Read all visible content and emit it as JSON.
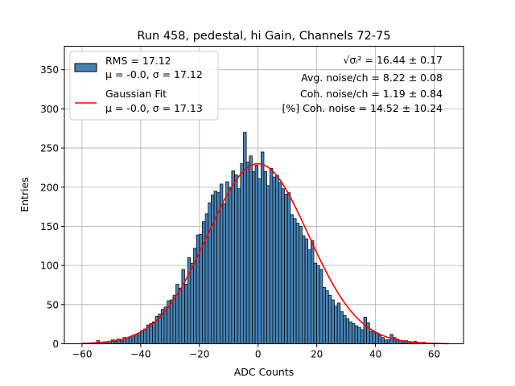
{
  "chart_data": {
    "type": "bar",
    "title": "Run 458, pedestal, hi Gain, Channels 72-75",
    "xlabel": "ADC Counts",
    "ylabel": "Entries",
    "xlim": [
      -66,
      70
    ],
    "ylim": [
      0,
      380
    ],
    "grid": true,
    "x_ticks": [
      -60,
      -40,
      -20,
      0,
      20,
      40,
      60
    ],
    "y_ticks": [
      0,
      50,
      100,
      150,
      200,
      250,
      300,
      350
    ],
    "bin_width": 1,
    "bins_start": [
      -60,
      -59,
      -58,
      -57,
      -56,
      -55,
      -54,
      -53,
      -52,
      -51,
      -50,
      -49,
      -48,
      -47,
      -46,
      -45,
      -44,
      -43,
      -42,
      -41,
      -40,
      -39,
      -38,
      -37,
      -36,
      -35,
      -34,
      -33,
      -32,
      -31,
      -30,
      -29,
      -28,
      -27,
      -26,
      -25,
      -24,
      -23,
      -22,
      -21,
      -20,
      -19,
      -18,
      -17,
      -16,
      -15,
      -14,
      -13,
      -12,
      -11,
      -10,
      -9,
      -8,
      -7,
      -6,
      -5,
      -4,
      -3,
      -2,
      -1,
      0,
      1,
      2,
      3,
      4,
      5,
      6,
      7,
      8,
      9,
      10,
      11,
      12,
      13,
      14,
      15,
      16,
      17,
      18,
      19,
      20,
      21,
      22,
      23,
      24,
      25,
      26,
      27,
      28,
      29,
      30,
      31,
      32,
      33,
      34,
      35,
      36,
      37,
      38,
      39,
      40,
      41,
      42,
      43,
      44,
      45,
      46,
      47,
      48,
      49,
      50,
      51,
      52,
      53,
      54,
      55,
      56,
      57,
      58,
      59,
      60,
      61,
      62,
      63,
      64
    ],
    "counts": [
      0,
      0,
      1,
      1,
      0,
      4,
      2,
      2,
      1,
      3,
      5,
      3,
      6,
      4,
      8,
      8,
      9,
      11,
      12,
      14,
      17,
      19,
      24,
      26,
      28,
      35,
      38,
      44,
      47,
      55,
      56,
      62,
      76,
      71,
      95,
      76,
      110,
      103,
      122,
      139,
      140,
      156,
      166,
      180,
      190,
      195,
      193,
      204,
      179,
      207,
      200,
      221,
      216,
      198,
      230,
      270,
      232,
      240,
      220,
      228,
      211,
      245,
      220,
      202,
      224,
      213,
      215,
      206,
      198,
      191,
      193,
      165,
      160,
      154,
      150,
      138,
      134,
      120,
      132,
      103,
      100,
      95,
      72,
      68,
      62,
      56,
      48,
      52,
      41,
      36,
      32,
      28,
      26,
      23,
      21,
      18,
      34,
      27,
      16,
      15,
      14,
      11,
      8,
      5,
      5,
      12,
      8,
      6,
      4,
      4,
      4,
      3,
      2,
      3,
      2,
      1,
      2,
      1,
      1,
      0,
      1,
      0,
      0,
      0,
      0
    ],
    "series": [
      {
        "name": "RMS = 17.12",
        "name_line2": "μ = -0.0, σ = 17.12",
        "kind": "histogram",
        "color": "#4682b4"
      },
      {
        "name": "Gaussian Fit",
        "name_line2": "μ = -0.0, σ = 17.13",
        "kind": "line",
        "color": "#ff0000",
        "mu": 0.0,
        "sigma": 17.13,
        "amplitude": 230
      }
    ],
    "annotations": {
      "sqrt_sigma_label": "√σᵢ² = 16.44 ± 0.17",
      "avg_noise": "Avg. noise/ch = 8.22 ± 0.08",
      "coh_noise": "Coh. noise/ch = 1.19 ± 0.84",
      "pct_coh_noise": "[%] Coh. noise = 14.52 ± 10.24"
    },
    "legend_position": "top-left",
    "annotation_position": "top-right"
  }
}
